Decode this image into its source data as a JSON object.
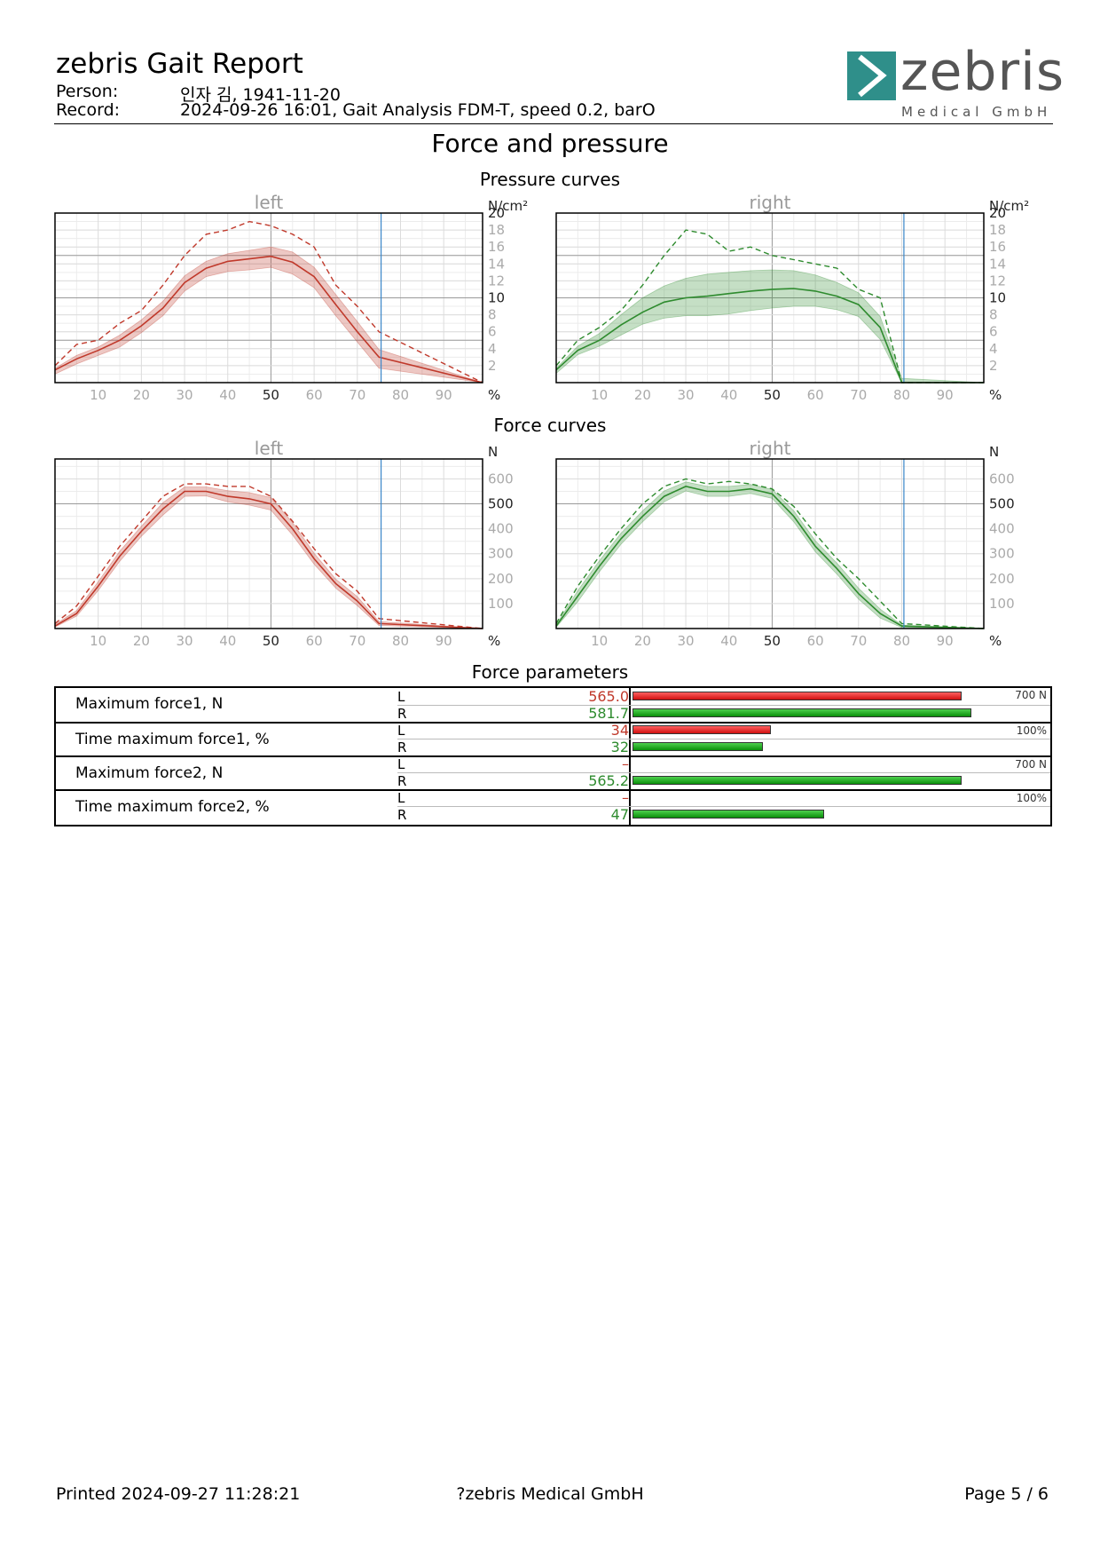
{
  "header": {
    "title": "zebris Gait Report",
    "person_label": "Person:",
    "person_value": "인자 김, 1941-11-20",
    "record_label": "Record:",
    "record_value": "2024-09-26 16:01, Gait Analysis FDM-T, speed 0.2, barO",
    "logo_word": "zebris",
    "logo_sub": "Medical GmbH"
  },
  "section_title": "Force and pressure",
  "pressure": {
    "heading": "Pressure curves",
    "left_title": "left",
    "right_title": "right",
    "unit": "N/cm²",
    "x_unit": "%"
  },
  "force": {
    "heading": "Force curves",
    "left_title": "left",
    "right_title": "right",
    "unit": "N",
    "x_unit": "%"
  },
  "chart_data": [
    {
      "type": "line",
      "title": "left",
      "chart_group": "Pressure curves",
      "ylabel": "N/cm²",
      "xlabel": "%",
      "xlim": [
        0,
        99
      ],
      "ylim": [
        0,
        20
      ],
      "x_ticks": [
        10,
        20,
        30,
        40,
        50,
        60,
        70,
        80,
        90
      ],
      "y_ticks": [
        2,
        4,
        6,
        8,
        10,
        12,
        14,
        16,
        18,
        20
      ],
      "stance_end": 75.5,
      "color": "#c0392b",
      "x": [
        0,
        5,
        10,
        15,
        20,
        25,
        30,
        35,
        40,
        45,
        50,
        55,
        60,
        65,
        70,
        75,
        99
      ],
      "series": [
        {
          "role": "mean",
          "values": [
            1.5,
            2.8,
            3.8,
            5.0,
            6.7,
            8.8,
            11.8,
            13.5,
            14.3,
            14.6,
            14.9,
            14.2,
            12.5,
            9.2,
            6.0,
            3.0,
            0
          ]
        },
        {
          "role": "max",
          "values": [
            2.0,
            4.5,
            5.0,
            7.0,
            8.5,
            11.5,
            15.0,
            17.5,
            18.0,
            19.0,
            18.5,
            17.5,
            16.0,
            11.5,
            9.0,
            6.0,
            0
          ]
        },
        {
          "role": "band_upper",
          "values": [
            1.7,
            3.2,
            4.2,
            5.6,
            7.4,
            9.6,
            12.6,
            14.3,
            15.2,
            15.6,
            16.0,
            15.4,
            13.6,
            10.4,
            7.2,
            3.9,
            0
          ]
        },
        {
          "role": "band_lower",
          "values": [
            1.0,
            2.2,
            3.2,
            4.2,
            5.9,
            7.9,
            10.8,
            12.5,
            13.1,
            13.3,
            13.6,
            12.8,
            11.2,
            7.9,
            4.8,
            1.7,
            0
          ]
        }
      ]
    },
    {
      "type": "line",
      "title": "right",
      "chart_group": "Pressure curves",
      "ylabel": "N/cm²",
      "xlabel": "%",
      "xlim": [
        0,
        99
      ],
      "ylim": [
        0,
        20
      ],
      "x_ticks": [
        10,
        20,
        30,
        40,
        50,
        60,
        70,
        80,
        90
      ],
      "y_ticks": [
        2,
        4,
        6,
        8,
        10,
        12,
        14,
        16,
        18,
        20
      ],
      "stance_end": 80.5,
      "color": "#2e8b2e",
      "x": [
        0,
        5,
        10,
        15,
        20,
        25,
        30,
        35,
        40,
        45,
        50,
        55,
        60,
        65,
        70,
        75,
        80,
        99
      ],
      "series": [
        {
          "role": "mean",
          "values": [
            1.5,
            3.8,
            5.0,
            6.8,
            8.3,
            9.5,
            10.0,
            10.2,
            10.5,
            10.8,
            11.0,
            11.1,
            10.8,
            10.2,
            9.2,
            6.5,
            0,
            0
          ]
        },
        {
          "role": "max",
          "values": [
            2.0,
            5.0,
            6.5,
            8.5,
            11.5,
            15.0,
            18.0,
            17.5,
            15.5,
            16.0,
            15.0,
            14.5,
            14.0,
            13.5,
            11.0,
            10.0,
            0,
            0
          ]
        },
        {
          "role": "band_upper",
          "values": [
            1.7,
            4.3,
            5.8,
            8.0,
            10.0,
            11.4,
            12.3,
            12.8,
            13.0,
            13.2,
            13.3,
            13.2,
            12.7,
            11.8,
            10.6,
            7.8,
            0.5,
            0
          ]
        },
        {
          "role": "band_lower",
          "values": [
            1.1,
            3.3,
            4.3,
            5.6,
            6.9,
            7.6,
            7.9,
            7.9,
            8.1,
            8.5,
            8.8,
            9.0,
            9.0,
            8.6,
            7.8,
            5.1,
            0,
            0
          ]
        }
      ]
    },
    {
      "type": "line",
      "title": "left",
      "chart_group": "Force curves",
      "ylabel": "N",
      "xlabel": "%",
      "xlim": [
        0,
        99
      ],
      "ylim": [
        0,
        680
      ],
      "x_ticks": [
        10,
        20,
        30,
        40,
        50,
        60,
        70,
        80,
        90
      ],
      "y_ticks": [
        100,
        200,
        300,
        400,
        500,
        600
      ],
      "stance_end": 75.5,
      "color": "#c0392b",
      "x": [
        0,
        5,
        10,
        15,
        20,
        25,
        30,
        35,
        40,
        45,
        50,
        55,
        60,
        65,
        70,
        75,
        99
      ],
      "series": [
        {
          "role": "mean",
          "values": [
            10,
            60,
            170,
            290,
            390,
            480,
            550,
            550,
            530,
            520,
            500,
            400,
            280,
            180,
            110,
            20,
            0
          ]
        },
        {
          "role": "max",
          "values": [
            20,
            90,
            210,
            330,
            430,
            530,
            580,
            580,
            570,
            570,
            530,
            430,
            320,
            220,
            150,
            40,
            0
          ]
        },
        {
          "role": "band_upper",
          "values": [
            16,
            72,
            188,
            310,
            410,
            505,
            568,
            568,
            553,
            545,
            525,
            425,
            302,
            198,
            128,
            28,
            0
          ]
        },
        {
          "role": "band_lower",
          "values": [
            6,
            50,
            152,
            270,
            370,
            455,
            530,
            532,
            508,
            495,
            475,
            375,
            258,
            162,
            92,
            12,
            0
          ]
        }
      ]
    },
    {
      "type": "line",
      "title": "right",
      "chart_group": "Force curves",
      "ylabel": "N",
      "xlabel": "%",
      "xlim": [
        0,
        99
      ],
      "ylim": [
        0,
        680
      ],
      "x_ticks": [
        10,
        20,
        30,
        40,
        50,
        60,
        70,
        80,
        90
      ],
      "y_ticks": [
        100,
        200,
        300,
        400,
        500,
        600
      ],
      "stance_end": 80.5,
      "color": "#2e8b2e",
      "x": [
        0,
        5,
        10,
        15,
        20,
        25,
        30,
        35,
        40,
        45,
        50,
        55,
        60,
        65,
        70,
        75,
        80,
        99
      ],
      "series": [
        {
          "role": "mean",
          "values": [
            10,
            130,
            250,
            360,
            450,
            530,
            570,
            550,
            550,
            560,
            540,
            450,
            330,
            240,
            140,
            60,
            10,
            0
          ]
        },
        {
          "role": "max",
          "values": [
            20,
            170,
            290,
            400,
            500,
            570,
            600,
            580,
            590,
            580,
            560,
            490,
            380,
            280,
            200,
            110,
            20,
            0
          ]
        },
        {
          "role": "band_upper",
          "values": [
            15,
            152,
            272,
            382,
            472,
            552,
            588,
            570,
            570,
            578,
            558,
            472,
            352,
            262,
            162,
            78,
            14,
            0
          ]
        },
        {
          "role": "band_lower",
          "values": [
            5,
            108,
            228,
            338,
            428,
            508,
            552,
            530,
            530,
            542,
            522,
            428,
            308,
            218,
            118,
            42,
            4,
            0
          ]
        }
      ]
    }
  ],
  "parameters": {
    "heading": "Force parameters",
    "rows": [
      {
        "name": "Maximum force1, N",
        "scale": "700 N",
        "max": 700,
        "left_label": "L",
        "right_label": "R",
        "left": "565.0",
        "right": "581.7",
        "left_value": 565.0,
        "right_value": 581.7
      },
      {
        "name": "Time maximum force1, %",
        "scale": "100%",
        "max": 100,
        "left_label": "L",
        "right_label": "R",
        "left": "34",
        "right": "32",
        "left_value": 34,
        "right_value": 32
      },
      {
        "name": "Maximum force2, N",
        "scale": "700 N",
        "max": 700,
        "left_label": "L",
        "right_label": "R",
        "left": "–",
        "right": "565.2",
        "left_value": null,
        "right_value": 565.2
      },
      {
        "name": "Time maximum force2, %",
        "scale": "100%",
        "max": 100,
        "left_label": "L",
        "right_label": "R",
        "left": "–",
        "right": "47",
        "left_value": null,
        "right_value": 47
      }
    ]
  },
  "footer": {
    "printed": "Printed  2024-09-27 11:28:21",
    "copyright": "?zebris Medical GmbH",
    "page": "Page  5 / 6"
  }
}
